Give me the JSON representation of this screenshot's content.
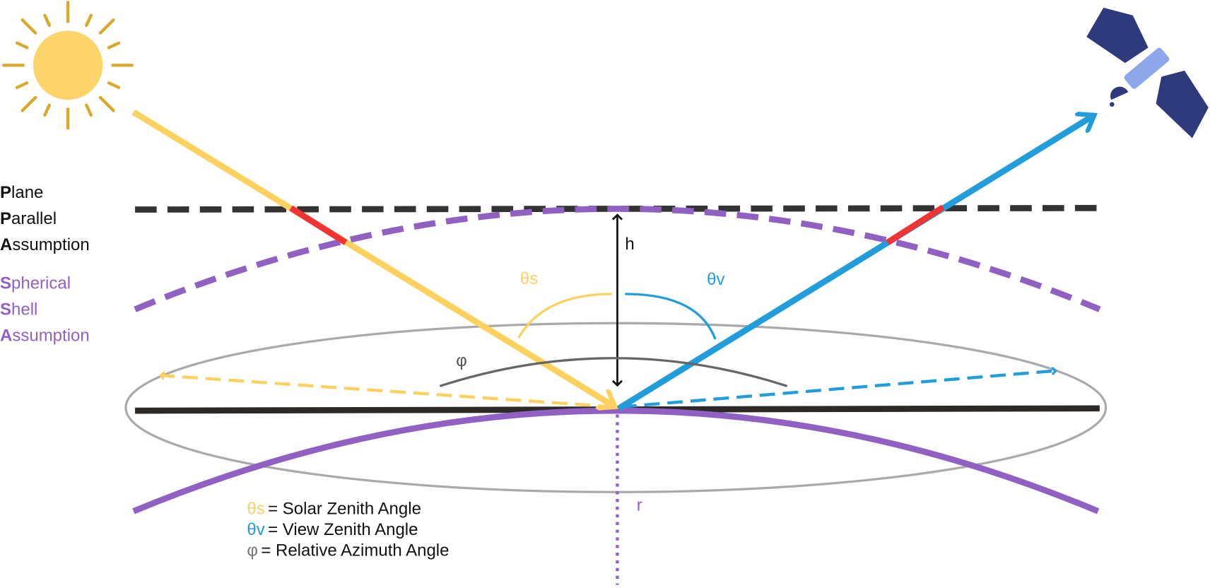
{
  "plane_parallel": [
    {
      "initial": "P",
      "rest": "lane"
    },
    {
      "initial": "P",
      "rest": "arallel"
    },
    {
      "initial": "A",
      "rest": "ssumption"
    }
  ],
  "spherical_shell": [
    {
      "initial": "S",
      "rest": "pherical"
    },
    {
      "initial": "S",
      "rest": "hell"
    },
    {
      "initial": "A",
      "rest": "ssumption"
    }
  ],
  "labels": {
    "h": "h",
    "theta_s": "θs",
    "theta_v": "θv",
    "phi": "φ",
    "r": "r"
  },
  "legend": [
    {
      "symbol": "θs",
      "text": "= Solar Zenith Angle"
    },
    {
      "symbol": "θv",
      "text": "= View Zenith Angle"
    },
    {
      "symbol": "φ",
      "text": "= Relative Azimuth Angle"
    }
  ]
}
